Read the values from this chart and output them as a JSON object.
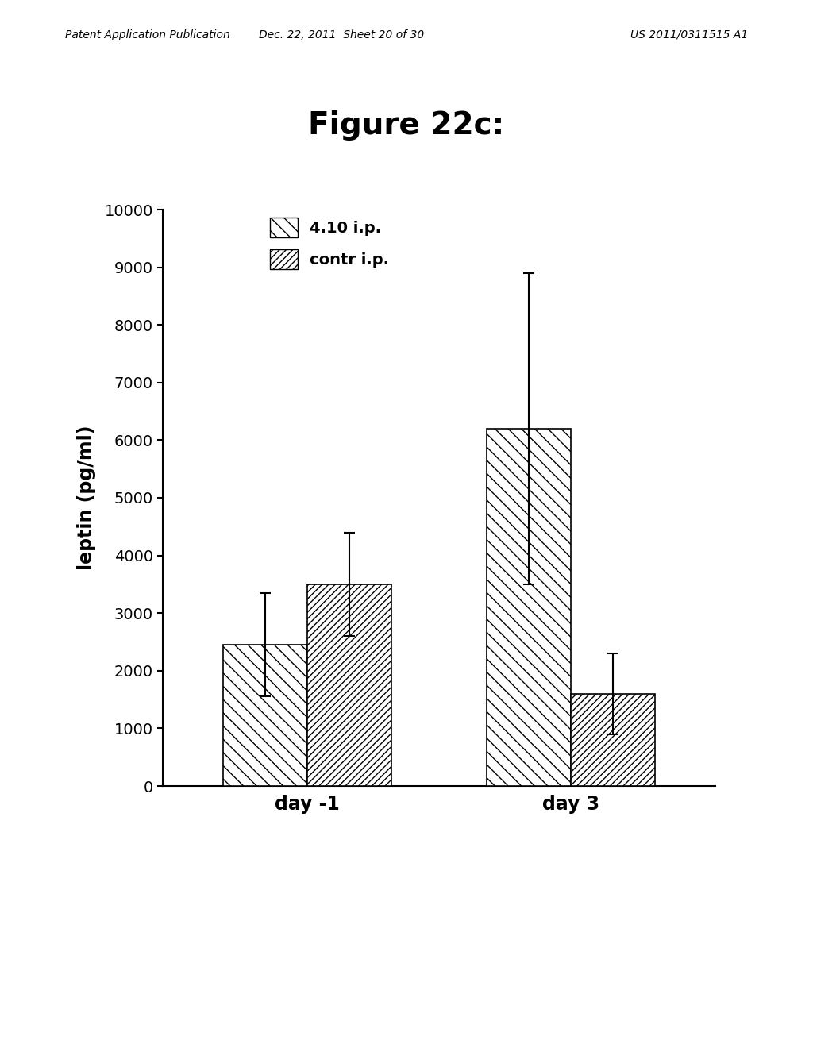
{
  "title": "Figure 22c:",
  "title_fontsize": 28,
  "title_fontweight": "bold",
  "ylabel": "leptin (pg/ml)",
  "ylabel_fontsize": 17,
  "xlabel_fontsize": 17,
  "categories": [
    "day -1",
    "day 3"
  ],
  "series": [
    {
      "label": "4.10 i.p.",
      "values": [
        2450,
        6200
      ],
      "errors": [
        900,
        2700
      ],
      "hatch": "\\\\"
    },
    {
      "label": "contr i.p.",
      "values": [
        3500,
        1600
      ],
      "errors": [
        900,
        700
      ],
      "hatch": "////"
    }
  ],
  "ylim": [
    0,
    10000
  ],
  "yticks": [
    0,
    1000,
    2000,
    3000,
    4000,
    5000,
    6000,
    7000,
    8000,
    9000,
    10000
  ],
  "bar_width": 0.32,
  "bar_facecolor": "white",
  "bar_edgecolor": "black",
  "error_capsize": 5,
  "error_color": "black",
  "background_color": "white",
  "legend_fontsize": 14,
  "tick_fontsize": 14,
  "header_left": "Patent Application Publication",
  "header_mid": "Dec. 22, 2011  Sheet 20 of 30",
  "header_right": "US 2011/0311515 A1",
  "header_fontsize": 10
}
